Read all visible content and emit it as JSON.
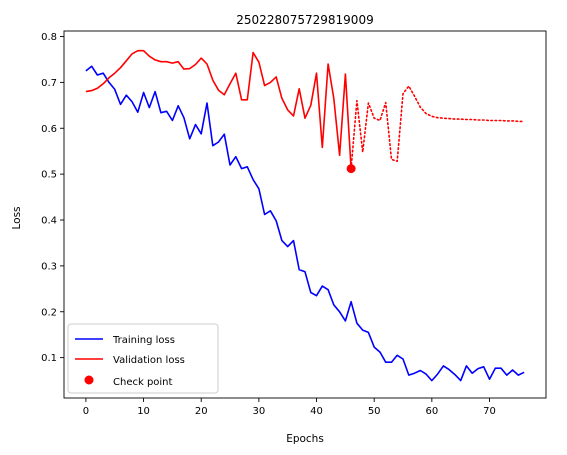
{
  "chart_data": {
    "type": "line",
    "title": "250228075729819009",
    "xlabel": "Epochs",
    "ylabel": "Loss",
    "xlim": [
      -3.8,
      79.8
    ],
    "ylim": [
      0.012,
      0.812
    ],
    "xticks": [
      0,
      10,
      20,
      30,
      40,
      50,
      60,
      70
    ],
    "yticks": [
      0.1,
      0.2,
      0.3,
      0.4,
      0.5,
      0.6,
      0.7,
      0.8
    ],
    "grid": false,
    "legend_position": "lower-left",
    "series": [
      {
        "name": "Training loss",
        "color": "#0000ff",
        "style": "solid",
        "x": [
          0,
          1,
          2,
          3,
          4,
          5,
          6,
          7,
          8,
          9,
          10,
          11,
          12,
          13,
          14,
          15,
          16,
          17,
          18,
          19,
          20,
          21,
          22,
          23,
          24,
          25,
          26,
          27,
          28,
          29,
          30,
          31,
          32,
          33,
          34,
          35,
          36,
          37,
          38,
          39,
          40,
          41,
          42,
          43,
          44,
          45,
          46,
          47,
          48,
          49,
          50,
          51,
          52,
          53,
          54,
          55,
          56,
          57,
          58,
          59,
          60,
          61,
          62,
          63,
          64,
          65,
          66,
          67,
          68,
          69,
          70,
          71,
          72,
          73,
          74,
          75,
          76
        ],
        "y": [
          0.725,
          0.735,
          0.716,
          0.72,
          0.7,
          0.685,
          0.652,
          0.672,
          0.658,
          0.635,
          0.678,
          0.645,
          0.68,
          0.634,
          0.637,
          0.617,
          0.649,
          0.623,
          0.577,
          0.608,
          0.588,
          0.655,
          0.562,
          0.57,
          0.587,
          0.52,
          0.538,
          0.512,
          0.516,
          0.488,
          0.468,
          0.412,
          0.42,
          0.398,
          0.355,
          0.342,
          0.355,
          0.292,
          0.287,
          0.242,
          0.235,
          0.256,
          0.248,
          0.215,
          0.2,
          0.18,
          0.222,
          0.175,
          0.16,
          0.155,
          0.123,
          0.112,
          0.09,
          0.09,
          0.105,
          0.097,
          0.062,
          0.066,
          0.072,
          0.064,
          0.05,
          0.064,
          0.082,
          0.074,
          0.063,
          0.05,
          0.082,
          0.066,
          0.076,
          0.08,
          0.053,
          0.077,
          0.077,
          0.062,
          0.073,
          0.062,
          0.068
        ]
      },
      {
        "name": "Validation loss",
        "color": "#ff0000",
        "style": "solid",
        "x": [
          0,
          1,
          2,
          3,
          4,
          5,
          6,
          7,
          8,
          9,
          10,
          11,
          12,
          13,
          14,
          15,
          16,
          17,
          18,
          19,
          20,
          21,
          22,
          23,
          24,
          25,
          26,
          27,
          28,
          29,
          30,
          31,
          32,
          33,
          34,
          35,
          36,
          37,
          38,
          39,
          40,
          41,
          42,
          43,
          44,
          45,
          46
        ],
        "y": [
          0.68,
          0.682,
          0.687,
          0.697,
          0.71,
          0.72,
          0.732,
          0.747,
          0.762,
          0.769,
          0.769,
          0.757,
          0.749,
          0.745,
          0.745,
          0.742,
          0.745,
          0.729,
          0.73,
          0.739,
          0.753,
          0.74,
          0.705,
          0.683,
          0.673,
          0.697,
          0.72,
          0.662,
          0.662,
          0.765,
          0.744,
          0.693,
          0.7,
          0.712,
          0.665,
          0.64,
          0.627,
          0.686,
          0.622,
          0.65,
          0.72,
          0.558,
          0.74,
          0.665,
          0.541,
          0.718,
          0.512
        ]
      },
      {
        "name": "",
        "color": "#ff0000",
        "style": "dotted",
        "x": [
          46,
          47,
          48,
          49,
          50,
          51,
          52,
          53,
          54,
          55,
          56,
          57,
          58,
          59,
          60,
          61,
          62,
          63,
          64,
          65,
          66,
          67,
          68,
          69,
          70,
          71,
          72,
          73,
          74,
          75,
          76
        ],
        "y": [
          0.512,
          0.66,
          0.548,
          0.655,
          0.622,
          0.617,
          0.656,
          0.532,
          0.528,
          0.675,
          0.692,
          0.67,
          0.646,
          0.632,
          0.626,
          0.623,
          0.622,
          0.621,
          0.62,
          0.62,
          0.619,
          0.619,
          0.618,
          0.618,
          0.617,
          0.617,
          0.617,
          0.616,
          0.616,
          0.615,
          0.615
        ]
      }
    ],
    "checkpoint": {
      "name": "Check point",
      "x": 46,
      "y": 0.512,
      "color": "#ff0000"
    },
    "legend": [
      "Training loss",
      "Validation loss",
      "Check point"
    ]
  }
}
